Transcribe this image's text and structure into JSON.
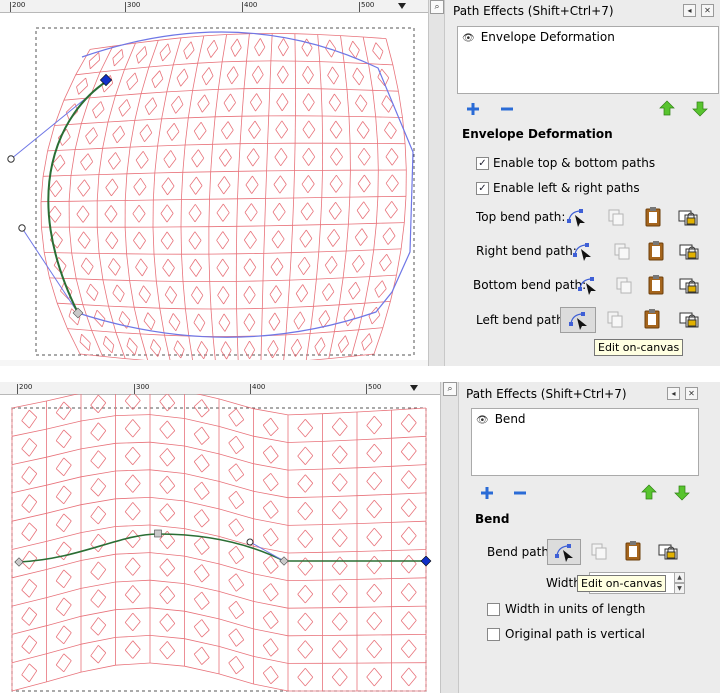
{
  "colors": {
    "grid_line": "#e8737b",
    "envelope_path": "#6f77e6",
    "edited_path": "#2a6e34",
    "knot_blue": "#1230c8",
    "panel_bg": "#ececec",
    "tooltip_bg": "#ffffe1"
  },
  "top": {
    "ruler": {
      "labels": [
        "200",
        "300",
        "400",
        "500"
      ]
    },
    "panel": {
      "title": "Path Effects  (Shift+Ctrl+7)",
      "effect_list": [
        "Envelope Deformation"
      ],
      "section_title": "Envelope Deformation",
      "enable_top_bottom": "Enable top & bottom paths",
      "enable_left_right": "Enable left & right paths",
      "top_bend": "Top bend path:",
      "right_bend": "Right bend path:",
      "bottom_bend": "Bottom bend path:",
      "left_bend": "Left bend path:",
      "tooltip": "Edit on-canvas"
    }
  },
  "bottom": {
    "ruler": {
      "labels": [
        "200",
        "300",
        "400",
        "500"
      ]
    },
    "panel": {
      "title": "Path Effects  (Shift+Ctrl+7)",
      "effect_list": [
        "Bend"
      ],
      "section_title": "Bend",
      "bend_path": "Bend path:",
      "width_label": "Width",
      "tooltip": "Edit on-canvas",
      "width_units": "Width in units of length",
      "vertical": "Original path is vertical"
    }
  },
  "icons": {
    "add": "add-effect-icon",
    "remove": "remove-effect-icon",
    "up": "move-up-icon",
    "down": "move-down-icon",
    "edit": "edit-on-canvas-icon",
    "copy": "copy-path-icon",
    "paste": "paste-path-icon",
    "link": "link-to-path-icon",
    "visible": "eye-icon"
  }
}
